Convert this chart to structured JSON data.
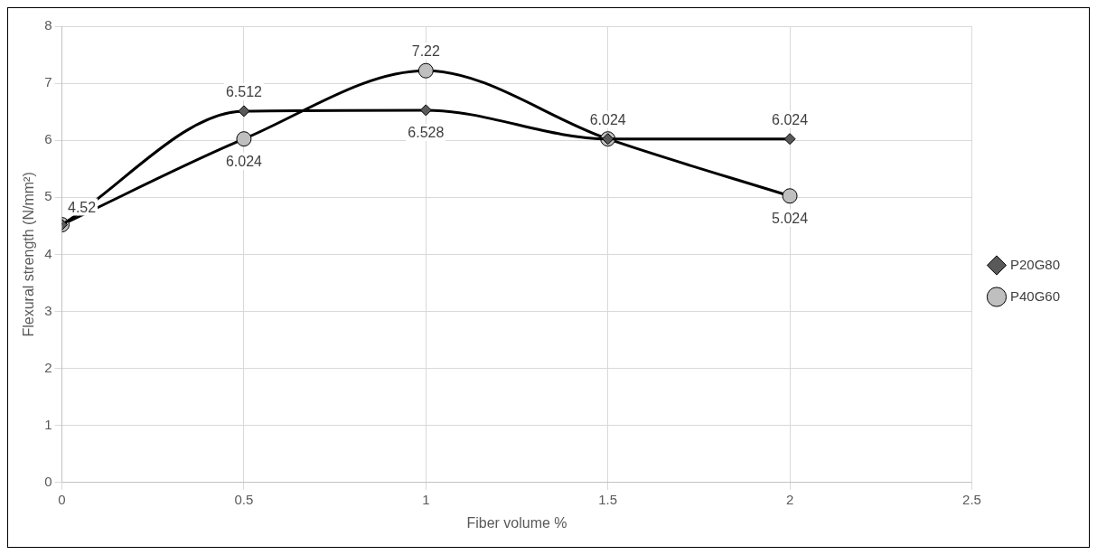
{
  "chart_data": {
    "type": "line",
    "xlabel": "Fiber volume %",
    "ylabel": "Flexural strength (N/mm²)",
    "x": [
      0,
      0.5,
      1,
      1.5,
      2
    ],
    "series": [
      {
        "name": "P20G80",
        "color": "#595959",
        "marker": "diamond",
        "values": [
          4.52,
          6.512,
          6.528,
          6.024,
          6.024
        ],
        "value_labels": [
          "4.52",
          "6.512",
          "6.528",
          "6.024",
          "6.024"
        ]
      },
      {
        "name": "P40G60",
        "color": "#bfbfbf",
        "marker": "circle",
        "values": [
          4.52,
          6.024,
          7.22,
          6.024,
          5.024
        ],
        "value_labels": [
          null,
          "6.024",
          "7.22",
          null,
          "5.024"
        ]
      }
    ],
    "xlim": [
      0,
      2.5
    ],
    "xticks": [
      0,
      0.5,
      1,
      1.5,
      2,
      2.5
    ],
    "ylim": [
      0,
      8
    ],
    "yticks": [
      0,
      1,
      2,
      3,
      4,
      5,
      6,
      7,
      8
    ],
    "grid": true,
    "legend": "right",
    "line_style": "solid"
  }
}
